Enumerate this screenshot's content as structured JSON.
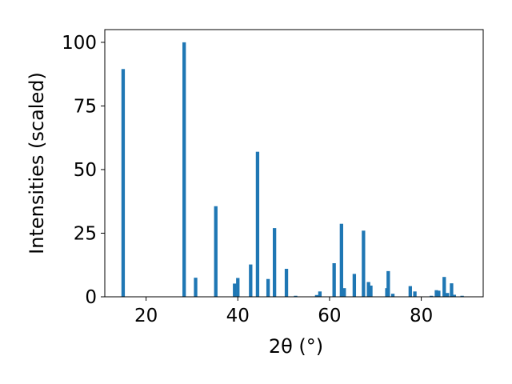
{
  "chart_data": {
    "type": "bar",
    "xlabel": "2θ (°)",
    "ylabel": "Intensities (scaled)",
    "xlim": [
      11.0,
      93.5
    ],
    "ylim": [
      0,
      105
    ],
    "x_ticks": [
      20,
      40,
      60,
      80
    ],
    "y_ticks": [
      0,
      25,
      50,
      75,
      100
    ],
    "grid": false,
    "bar_color": "#1f77b4",
    "bar_width": 0.75,
    "points": [
      {
        "x": 15.0,
        "y": 89.5
      },
      {
        "x": 28.3,
        "y": 100.0
      },
      {
        "x": 30.8,
        "y": 7.5
      },
      {
        "x": 35.2,
        "y": 35.6
      },
      {
        "x": 39.3,
        "y": 5.2
      },
      {
        "x": 40.0,
        "y": 7.4
      },
      {
        "x": 42.8,
        "y": 12.7
      },
      {
        "x": 44.3,
        "y": 57.0
      },
      {
        "x": 46.6,
        "y": 7.0
      },
      {
        "x": 48.0,
        "y": 27.0
      },
      {
        "x": 50.6,
        "y": 11.0
      },
      {
        "x": 52.6,
        "y": 0.4
      },
      {
        "x": 57.2,
        "y": 0.7
      },
      {
        "x": 57.9,
        "y": 2.1
      },
      {
        "x": 61.0,
        "y": 13.2
      },
      {
        "x": 62.6,
        "y": 28.7
      },
      {
        "x": 63.2,
        "y": 3.4
      },
      {
        "x": 65.4,
        "y": 9.0
      },
      {
        "x": 67.4,
        "y": 26.0
      },
      {
        "x": 68.5,
        "y": 5.8
      },
      {
        "x": 69.0,
        "y": 4.4
      },
      {
        "x": 72.5,
        "y": 3.4
      },
      {
        "x": 72.8,
        "y": 10.1
      },
      {
        "x": 73.8,
        "y": 1.2
      },
      {
        "x": 77.6,
        "y": 4.2
      },
      {
        "x": 78.6,
        "y": 2.1
      },
      {
        "x": 82.2,
        "y": 0.4
      },
      {
        "x": 83.3,
        "y": 2.6
      },
      {
        "x": 83.8,
        "y": 2.4
      },
      {
        "x": 85.0,
        "y": 7.8
      },
      {
        "x": 85.7,
        "y": 1.5
      },
      {
        "x": 86.6,
        "y": 5.3
      },
      {
        "x": 87.2,
        "y": 0.8
      },
      {
        "x": 88.9,
        "y": 0.4
      }
    ]
  }
}
